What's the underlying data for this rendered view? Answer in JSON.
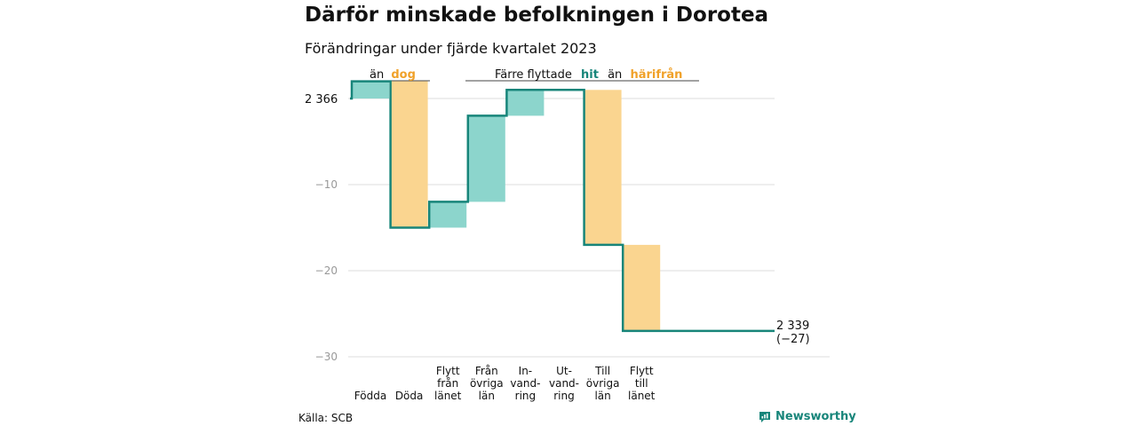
{
  "header": {
    "title": "Därför minskade befolkningen i Dorotea",
    "subtitle": "Förändringar under fjärde kvartalet 2023"
  },
  "annotations": {
    "births_deaths": {
      "prefix": "än",
      "highlight": "dog"
    },
    "migration": {
      "prefix": "Färre flyttade",
      "highlight1": "hit",
      "middle": "än",
      "highlight2": "härifrån"
    }
  },
  "colors": {
    "positive": "#8cd5cc",
    "negative": "#fad590",
    "line": "#17857a",
    "highlight_positive": "#17857a",
    "highlight_negative": "#f0a129",
    "grid": "#dddddd",
    "axis_text": "#999999"
  },
  "chart_data": {
    "type": "waterfall",
    "start_value": 2366,
    "start_label": "2 366",
    "end_label": "2 339",
    "end_change_label": "(−27)",
    "categories": [
      {
        "label": [
          "Födda"
        ],
        "value": 2,
        "kind": "positive"
      },
      {
        "label": [
          "Döda"
        ],
        "value": -17,
        "kind": "negative"
      },
      {
        "label": [
          "Flytt",
          "från",
          "länet"
        ],
        "value": 3,
        "kind": "positive"
      },
      {
        "label": [
          "Från",
          "övriga",
          "län"
        ],
        "value": 10,
        "kind": "positive"
      },
      {
        "label": [
          "In-",
          "vand-",
          "ring"
        ],
        "value": 3,
        "kind": "positive"
      },
      {
        "label": [
          "Ut-",
          "vand-",
          "ring"
        ],
        "value": 0,
        "kind": "neutral"
      },
      {
        "label": [
          "Till",
          "övriga",
          "län"
        ],
        "value": -18,
        "kind": "negative"
      },
      {
        "label": [
          "Flytt",
          "till",
          "länet"
        ],
        "value": -10,
        "kind": "negative"
      }
    ],
    "y_ticks": [
      {
        "value": -10,
        "label": "−10"
      },
      {
        "value": -20,
        "label": "−20"
      },
      {
        "value": -30,
        "label": "−30"
      }
    ],
    "ylim": [
      -30,
      2
    ],
    "grid": true
  },
  "footer": {
    "source": "Källa: SCB",
    "brand": "Newsworthy"
  }
}
